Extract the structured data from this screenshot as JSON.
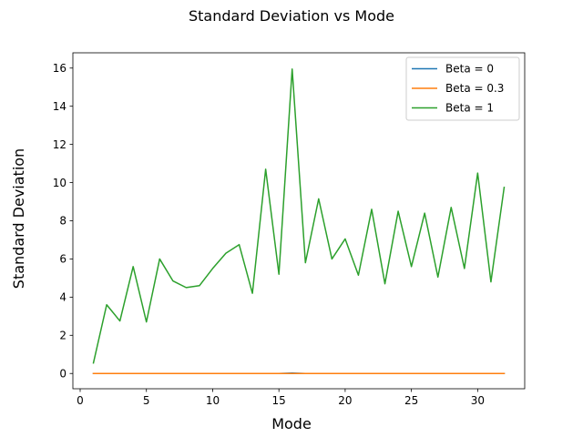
{
  "chart_data": {
    "type": "line",
    "title": "Standard Deviation vs Mode",
    "xlabel": "Mode",
    "ylabel": "Standard Deviation",
    "xlim": [
      -0.55,
      33.55
    ],
    "ylim": [
      -0.8,
      16.8
    ],
    "xticks": [
      0,
      5,
      10,
      15,
      20,
      25,
      30
    ],
    "yticks": [
      0,
      2,
      4,
      6,
      8,
      10,
      12,
      14,
      16
    ],
    "grid": false,
    "legend_position": "top-right",
    "x": [
      1,
      2,
      3,
      4,
      5,
      6,
      7,
      8,
      9,
      10,
      11,
      12,
      13,
      14,
      15,
      16,
      17,
      18,
      19,
      20,
      21,
      22,
      23,
      24,
      25,
      26,
      27,
      28,
      29,
      30,
      31,
      32
    ],
    "series": [
      {
        "name": "Beta = 0",
        "color": "#1f77b4",
        "values": [
          0,
          0,
          0,
          0,
          0,
          0,
          0,
          0,
          0,
          0,
          0,
          0,
          0,
          0,
          0,
          0.02,
          0,
          0,
          0,
          0,
          0,
          0,
          0,
          0,
          0,
          0,
          0,
          0,
          0,
          0,
          0,
          0
        ]
      },
      {
        "name": "Beta = 0.3",
        "color": "#ff7f0e",
        "values": [
          0,
          0,
          0,
          0,
          0,
          0,
          0,
          0,
          0,
          0,
          0,
          0,
          0,
          0,
          0,
          0,
          0,
          0,
          0,
          0,
          0,
          0,
          0,
          0,
          0,
          0,
          0,
          0,
          0,
          0,
          0,
          0
        ]
      },
      {
        "name": "Beta = 1",
        "color": "#2ca02c",
        "values": [
          0.55,
          3.6,
          2.75,
          5.6,
          2.7,
          6.0,
          4.85,
          4.5,
          4.6,
          5.5,
          6.3,
          6.75,
          4.2,
          10.7,
          5.2,
          15.95,
          5.8,
          9.15,
          6.0,
          7.05,
          5.15,
          8.6,
          4.7,
          8.5,
          5.6,
          8.4,
          5.05,
          8.7,
          5.5,
          10.5,
          4.8,
          9.75
        ]
      }
    ]
  }
}
